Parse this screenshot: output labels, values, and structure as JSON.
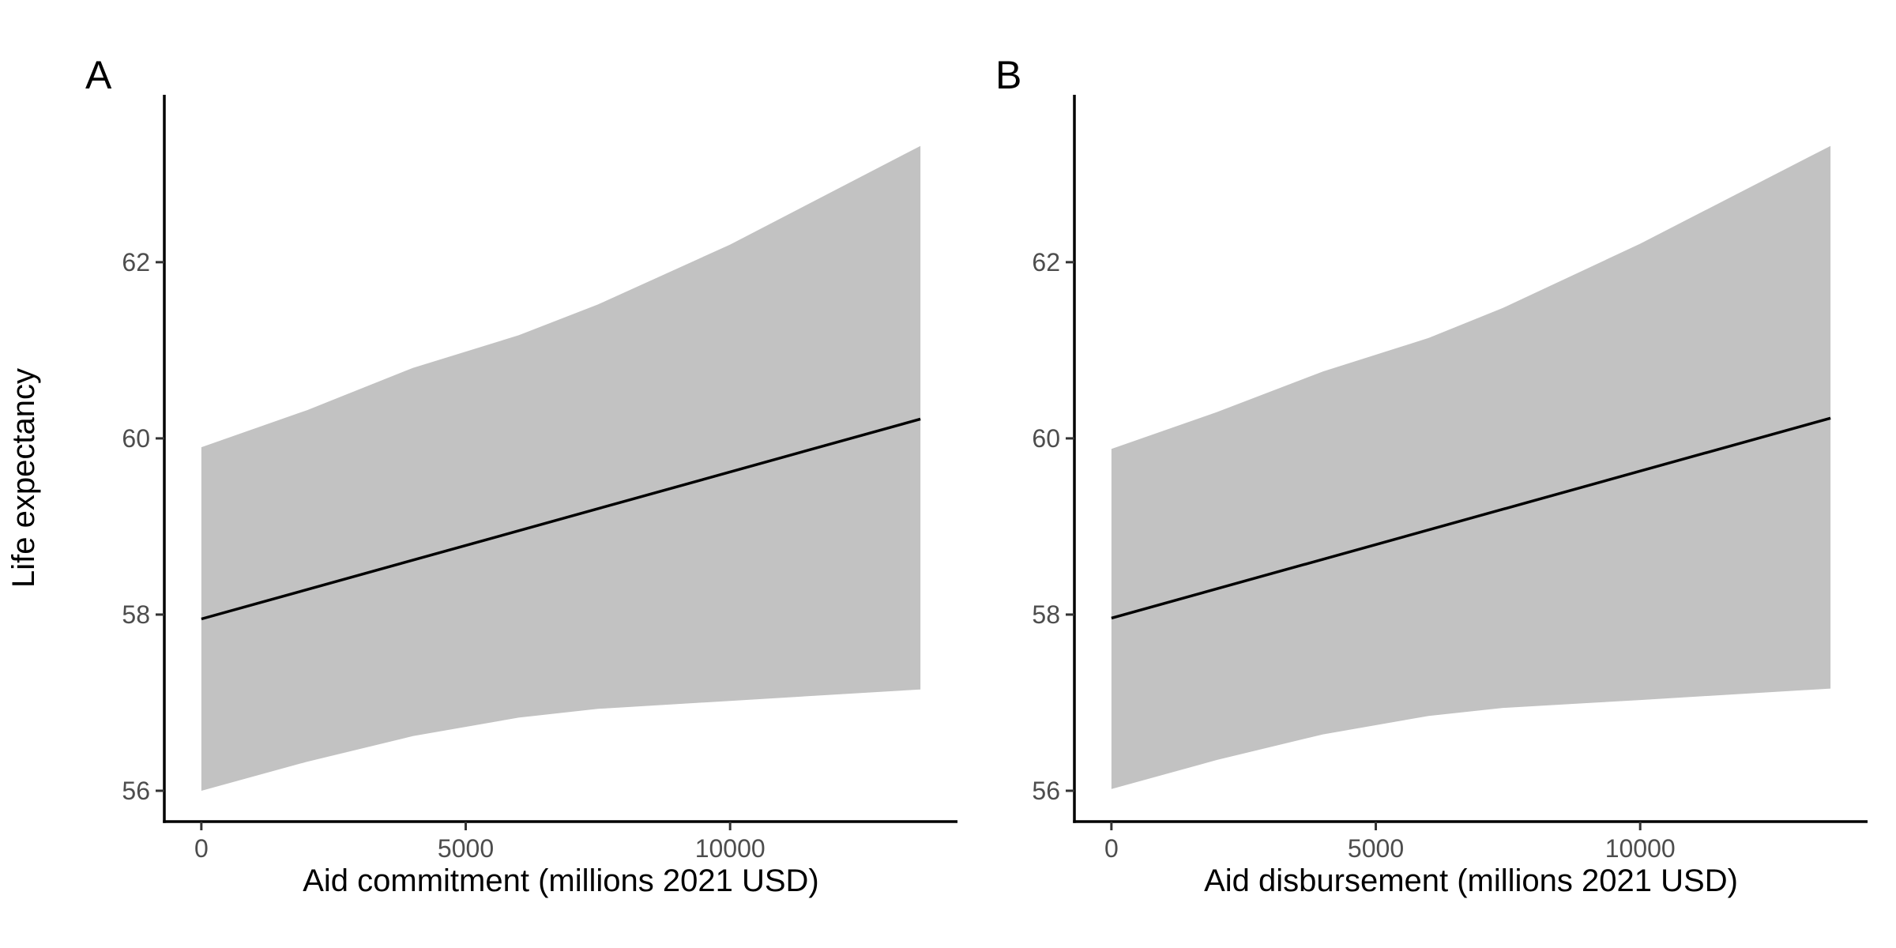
{
  "figure": {
    "ylabel": "Life expectancy",
    "ribbon_color": "#c2c2c2",
    "line_color": "#000000"
  },
  "chart_data": [
    {
      "type": "line",
      "panel": "A",
      "title": "",
      "xlabel": "Aid commitment (millions 2021 USD)",
      "ylabel": "Life expectancy",
      "xlim": [
        -700,
        14300
      ],
      "ylim": [
        55.65,
        63.9
      ],
      "xticks": [
        0,
        5000,
        10000
      ],
      "xtick_labels": [
        "0",
        "5000",
        "10000"
      ],
      "yticks": [
        56,
        58,
        60,
        62
      ],
      "ytick_labels": [
        "56",
        "58",
        "60",
        "62"
      ],
      "grid": false,
      "legend": "none",
      "series": [
        {
          "x": [
            0,
            13600
          ],
          "y": [
            57.95,
            60.22
          ]
        }
      ],
      "ribbon": {
        "x": [
          0,
          2000,
          4000,
          6000,
          7500,
          10000,
          13600
        ],
        "upper": [
          59.9,
          60.32,
          60.8,
          61.17,
          61.52,
          62.2,
          63.32
        ],
        "lower": [
          56.0,
          56.33,
          56.62,
          56.83,
          56.93,
          57.02,
          57.15
        ]
      }
    },
    {
      "type": "line",
      "panel": "B",
      "title": "",
      "xlabel": "Aid disbursement (millions 2021 USD)",
      "ylabel": "",
      "xlim": [
        -700,
        14300
      ],
      "ylim": [
        55.65,
        63.9
      ],
      "xticks": [
        0,
        5000,
        10000
      ],
      "xtick_labels": [
        "0",
        "5000",
        "10000"
      ],
      "yticks": [
        56,
        58,
        60,
        62
      ],
      "ytick_labels": [
        "56",
        "58",
        "60",
        "62"
      ],
      "grid": false,
      "legend": "none",
      "series": [
        {
          "x": [
            0,
            13600
          ],
          "y": [
            57.96,
            60.23
          ]
        }
      ],
      "ribbon": {
        "x": [
          0,
          2000,
          4000,
          6000,
          7400,
          10000,
          13600
        ],
        "upper": [
          59.88,
          60.3,
          60.76,
          61.14,
          61.48,
          62.21,
          63.32
        ],
        "lower": [
          56.02,
          56.35,
          56.64,
          56.85,
          56.94,
          57.03,
          57.16
        ]
      }
    }
  ]
}
